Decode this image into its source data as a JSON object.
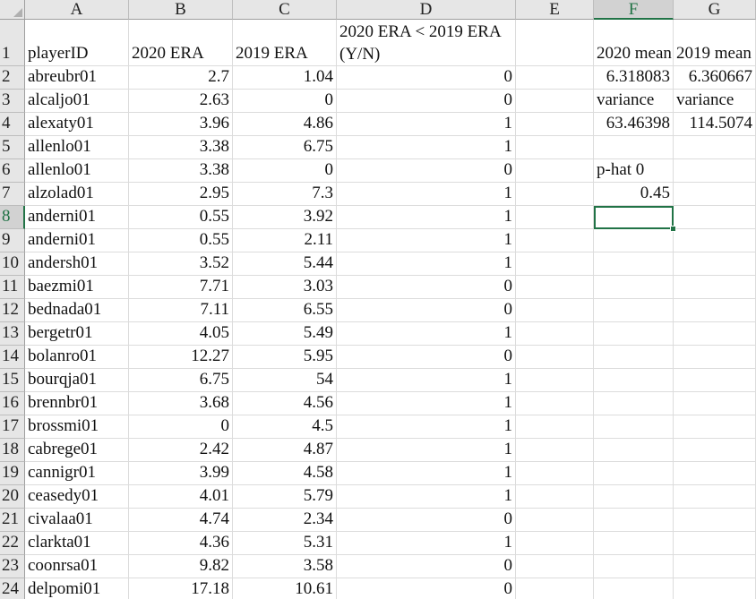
{
  "columns": [
    "A",
    "B",
    "C",
    "D",
    "E",
    "F",
    "G"
  ],
  "selected_column": "F",
  "selected_row": "8",
  "headers": {
    "playerID": "playerID",
    "era2020": "2020 ERA",
    "era2019": "2019 ERA",
    "compare": "2020 ERA < 2019 ERA (Y/N)",
    "mean2020_label": "2020 mean",
    "mean2019_label": "2019 mean"
  },
  "stats": {
    "mean2020": "6.318083",
    "mean2019": "6.360667",
    "variance_label_f": "variance",
    "variance_label_g": "variance",
    "variance2020": "63.46398",
    "variance2019": "114.5074",
    "phat_label": "p-hat 0",
    "phat_value": "0.45"
  },
  "rows": [
    {
      "num": "2",
      "id": "abreubr01",
      "e2020": "2.7",
      "e2019": "1.04",
      "yn": "0"
    },
    {
      "num": "3",
      "id": "alcaljo01",
      "e2020": "2.63",
      "e2019": "0",
      "yn": "0"
    },
    {
      "num": "4",
      "id": "alexaty01",
      "e2020": "3.96",
      "e2019": "4.86",
      "yn": "1"
    },
    {
      "num": "5",
      "id": "allenlo01",
      "e2020": "3.38",
      "e2019": "6.75",
      "yn": "1"
    },
    {
      "num": "6",
      "id": "allenlo01",
      "e2020": "3.38",
      "e2019": "0",
      "yn": "0"
    },
    {
      "num": "7",
      "id": "alzolad01",
      "e2020": "2.95",
      "e2019": "7.3",
      "yn": "1"
    },
    {
      "num": "8",
      "id": "anderni01",
      "e2020": "0.55",
      "e2019": "3.92",
      "yn": "1"
    },
    {
      "num": "9",
      "id": "anderni01",
      "e2020": "0.55",
      "e2019": "2.11",
      "yn": "1"
    },
    {
      "num": "10",
      "id": "andersh01",
      "e2020": "3.52",
      "e2019": "5.44",
      "yn": "1"
    },
    {
      "num": "11",
      "id": "baezmi01",
      "e2020": "7.71",
      "e2019": "3.03",
      "yn": "0"
    },
    {
      "num": "12",
      "id": "bednada01",
      "e2020": "7.11",
      "e2019": "6.55",
      "yn": "0"
    },
    {
      "num": "13",
      "id": "bergetr01",
      "e2020": "4.05",
      "e2019": "5.49",
      "yn": "1"
    },
    {
      "num": "14",
      "id": "bolanro01",
      "e2020": "12.27",
      "e2019": "5.95",
      "yn": "0"
    },
    {
      "num": "15",
      "id": "bourqja01",
      "e2020": "6.75",
      "e2019": "54",
      "yn": "1"
    },
    {
      "num": "16",
      "id": "brennbr01",
      "e2020": "3.68",
      "e2019": "4.56",
      "yn": "1"
    },
    {
      "num": "17",
      "id": "brossmi01",
      "e2020": "0",
      "e2019": "4.5",
      "yn": "1"
    },
    {
      "num": "18",
      "id": "cabrege01",
      "e2020": "2.42",
      "e2019": "4.87",
      "yn": "1"
    },
    {
      "num": "19",
      "id": "cannigr01",
      "e2020": "3.99",
      "e2019": "4.58",
      "yn": "1"
    },
    {
      "num": "20",
      "id": "ceasedy01",
      "e2020": "4.01",
      "e2019": "5.79",
      "yn": "1"
    },
    {
      "num": "21",
      "id": "civalaa01",
      "e2020": "4.74",
      "e2019": "2.34",
      "yn": "0"
    },
    {
      "num": "22",
      "id": "clarkta01",
      "e2020": "4.36",
      "e2019": "5.31",
      "yn": "1"
    },
    {
      "num": "23",
      "id": "coonrsa01",
      "e2020": "9.82",
      "e2019": "3.58",
      "yn": "0"
    },
    {
      "num": "24",
      "id": "delpomi01",
      "e2020": "17.18",
      "e2019": "10.61",
      "yn": "0"
    }
  ],
  "accent_color": "#217346"
}
